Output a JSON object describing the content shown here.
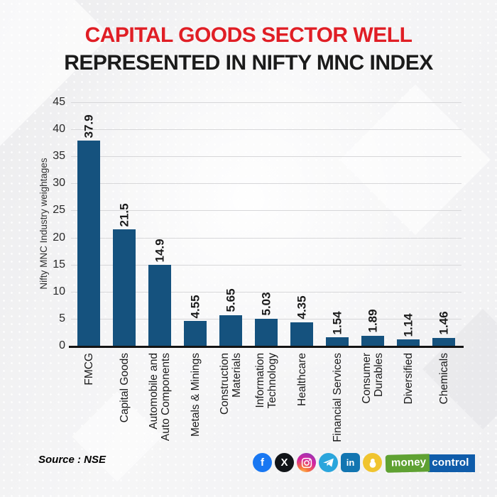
{
  "title": {
    "line1": "CAPITAL GOODS SECTOR WELL",
    "line2": "REPRESENTED IN NIFTY MNC INDEX"
  },
  "chart_data": {
    "type": "bar",
    "title": "CAPITAL GOODS SECTOR WELL REPRESENTED IN NIFTY MNC INDEX",
    "categories": [
      "FMCG",
      "Capital Goods",
      "Automobile and Auto Components",
      "Metals & Minings",
      "Construction Materials",
      "Information Technology",
      "Healthcare",
      "Financial Services",
      "Consumer Durables",
      "Diversified",
      "Chemicals"
    ],
    "category_lines": [
      [
        "FMCG"
      ],
      [
        "Capital Goods"
      ],
      [
        "Automobile and",
        "Auto Components"
      ],
      [
        "Metals & Minings"
      ],
      [
        "Construction",
        "Materials"
      ],
      [
        "Information",
        "Technology"
      ],
      [
        "Healthcare"
      ],
      [
        "Financial Services"
      ],
      [
        "Consumer",
        "Durables"
      ],
      [
        "Diversified"
      ],
      [
        "Chemicals"
      ]
    ],
    "values": [
      37.9,
      21.5,
      14.9,
      4.55,
      5.65,
      5.03,
      4.35,
      1.54,
      1.89,
      1.14,
      1.46
    ],
    "value_labels": [
      "37.9",
      "21.5",
      "14.9",
      "4.55",
      "5.65",
      "5.03",
      "4.35",
      "1.54",
      "1.89",
      "1.14",
      "1.46"
    ],
    "xlabel": "",
    "ylabel": "Nifty MNC Industry weightages",
    "yticks": [
      0,
      5,
      10,
      15,
      20,
      25,
      30,
      35,
      40,
      45
    ],
    "ylim": [
      0,
      45
    ],
    "grid": true,
    "legend": "none",
    "bar_color": "#15527e"
  },
  "colors": {
    "title_red": "#e01e25",
    "title_black": "#1b1b1b",
    "bar": "#15527e",
    "gridline": "#d7d7d9",
    "axis": "#141414",
    "tick_text": "#2a2a2a",
    "label_text": "#1a1a1a"
  },
  "footer": {
    "source": "Source : NSE",
    "social_icons": [
      {
        "name": "facebook",
        "color": "#1877f2",
        "glyph": "f"
      },
      {
        "name": "x",
        "color": "#111418",
        "glyph": "X"
      },
      {
        "name": "instagram",
        "color": "gradient",
        "glyph": "camera"
      },
      {
        "name": "telegram",
        "color": "#2aa5dc",
        "glyph": "paper-plane"
      },
      {
        "name": "linkedin",
        "color": "#1275b1",
        "glyph": "in"
      },
      {
        "name": "koo",
        "color": "#f0c42f",
        "glyph": "bird"
      }
    ],
    "logo": {
      "part1": "money",
      "part2": "control",
      "green": "#5fa132",
      "blue": "#0f5caa"
    }
  }
}
